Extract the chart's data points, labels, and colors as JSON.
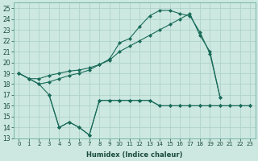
{
  "xlabel": "Humidex (Indice chaleur)",
  "background_color": "#cce8e0",
  "grid_color": "#aacfc8",
  "line_color": "#1a6b5a",
  "xlim": [
    -0.5,
    23.5
  ],
  "ylim": [
    13,
    25.5
  ],
  "yticks": [
    13,
    14,
    15,
    16,
    17,
    18,
    19,
    20,
    21,
    22,
    23,
    24,
    25
  ],
  "xticks": [
    0,
    1,
    2,
    3,
    4,
    5,
    6,
    7,
    8,
    9,
    10,
    11,
    12,
    13,
    14,
    15,
    16,
    17,
    18,
    19,
    20,
    21,
    22,
    23
  ],
  "line_zigzag": {
    "x": [
      0,
      1,
      2,
      3,
      4,
      5,
      6,
      7,
      8,
      9,
      10,
      11,
      12,
      13,
      14,
      15,
      16,
      17,
      18,
      19,
      20,
      21,
      22,
      23
    ],
    "y": [
      19,
      18.5,
      18,
      17,
      14,
      14.5,
      14,
      13.3,
      16.5,
      16.5,
      16.5,
      16.5,
      16.5,
      16.5,
      16,
      16,
      16,
      16,
      16,
      16,
      16,
      16,
      16,
      16
    ]
  },
  "line_main": {
    "x": [
      0,
      1,
      2,
      3,
      4,
      5,
      6,
      7,
      8,
      9,
      10,
      11,
      12,
      13,
      14,
      15,
      16,
      17,
      18,
      19,
      20
    ],
    "y": [
      19,
      18.5,
      18,
      18.2,
      18.5,
      18.8,
      19,
      19.3,
      19.8,
      20.3,
      21.8,
      22.2,
      23.3,
      24.3,
      24.8,
      24.8,
      24.5,
      24.3,
      22.8,
      20.8,
      16.8
    ]
  },
  "line_smooth": {
    "x": [
      0,
      1,
      2,
      3,
      4,
      5,
      6,
      7,
      8,
      9,
      10,
      11,
      12,
      13,
      14,
      15,
      16,
      17,
      18,
      19,
      20
    ],
    "y": [
      19,
      18.5,
      18.5,
      18.8,
      19,
      19.2,
      19.3,
      19.5,
      19.8,
      20.2,
      21,
      21.5,
      22,
      22.5,
      23,
      23.5,
      24,
      24.5,
      22.5,
      21,
      16.8
    ]
  },
  "line_flat": {
    "x": [
      3,
      4,
      5,
      6,
      7,
      8,
      9,
      10,
      11,
      12,
      13,
      14,
      15,
      16,
      17,
      18,
      19,
      20,
      21,
      22,
      23
    ],
    "y": [
      17,
      14,
      14.5,
      14,
      13.3,
      16.5,
      16.5,
      16.5,
      16.5,
      16.5,
      16.5,
      16,
      16,
      16,
      16,
      16,
      16,
      16,
      16,
      16,
      16
    ]
  }
}
